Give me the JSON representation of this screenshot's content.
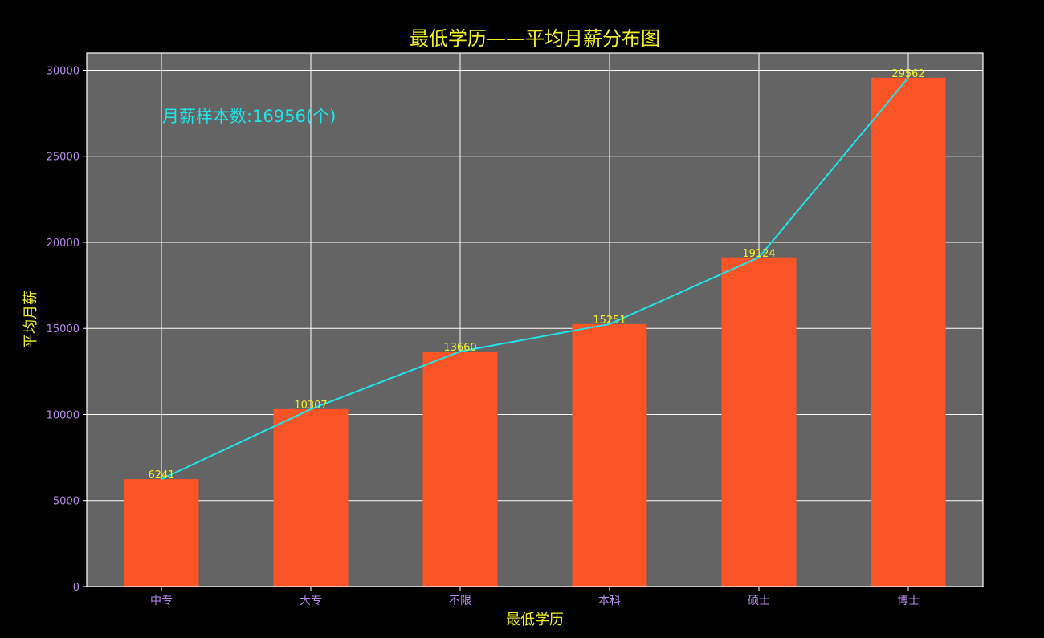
{
  "chart_data": {
    "type": "bar",
    "title": "最低学历——平均月薪分布图",
    "xlabel": "最低学历",
    "ylabel": "平均月薪",
    "categories": [
      "中专",
      "大专",
      "不限",
      "本科",
      "硕士",
      "博士"
    ],
    "values": [
      6241,
      10307,
      13660,
      15251,
      19124,
      29562
    ],
    "overlay_line": true,
    "ylim": [
      0,
      31000
    ],
    "yticks": [
      0,
      5000,
      10000,
      15000,
      20000,
      25000,
      30000
    ],
    "grid": true,
    "annotation": "月薪样本数:16956(个)"
  },
  "colors": {
    "background": "#000000",
    "plot_background": "#646464",
    "bar": "#fa5427",
    "line": "#1fe5e6",
    "title": "#f0f020",
    "axis_label": "#f0f020",
    "tick_label": "#b58ae8",
    "data_label": "#f0f020",
    "annotation": "#1fe5e6",
    "grid": "#ffffff"
  }
}
